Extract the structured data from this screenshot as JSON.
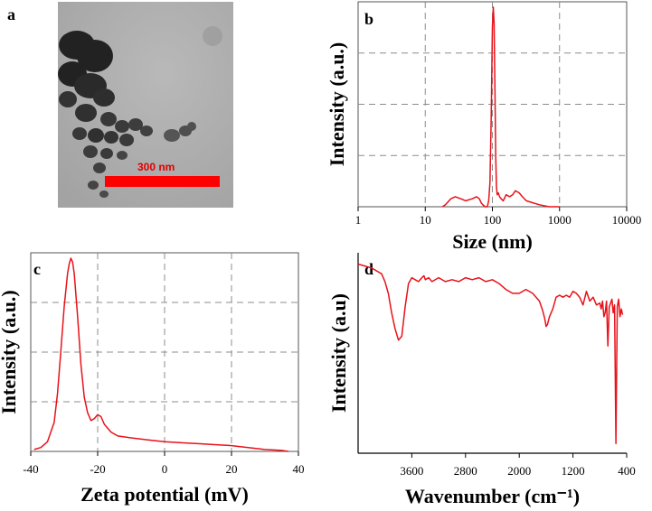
{
  "panels": {
    "a": {
      "letter": "a",
      "scale_bar_label": "300 nm",
      "scale_bar_color": "#ff0000"
    },
    "b": {
      "letter": "b"
    },
    "c": {
      "letter": "c"
    },
    "d": {
      "letter": "d"
    }
  },
  "chart_data": [
    {
      "panel": "b",
      "type": "line",
      "xlabel": "Size (nm)",
      "ylabel": "Intensity (a.u.)",
      "xscale": "log",
      "xlim": [
        1,
        10000
      ],
      "xticks": [
        1,
        10,
        100,
        1000,
        10000
      ],
      "xtick_labels": [
        "1",
        "10",
        "100",
        "1000",
        "10000"
      ],
      "ylim": [
        0,
        1
      ],
      "grid": true,
      "color": "#e8121a",
      "x": [
        18,
        20,
        24,
        28,
        34,
        40,
        50,
        58,
        64,
        68,
        72,
        78,
        84,
        88,
        92,
        96,
        100,
        103,
        106,
        109,
        112,
        115,
        118,
        122,
        128,
        135,
        145,
        160,
        180,
        200,
        220,
        250,
        280,
        320,
        400,
        500,
        700,
        1000
      ],
      "y": [
        0.0,
        0.01,
        0.04,
        0.05,
        0.04,
        0.03,
        0.04,
        0.05,
        0.04,
        0.02,
        0.01,
        0.0,
        0.0,
        0.03,
        0.12,
        0.45,
        0.9,
        1.0,
        0.92,
        0.6,
        0.25,
        0.1,
        0.06,
        0.07,
        0.05,
        0.04,
        0.03,
        0.06,
        0.05,
        0.06,
        0.08,
        0.07,
        0.05,
        0.03,
        0.02,
        0.01,
        0.0,
        0.0
      ]
    },
    {
      "panel": "c",
      "type": "line",
      "xlabel": "Zeta potential (mV)",
      "ylabel": "Intensity (a.u.)",
      "xlim": [
        -40,
        40
      ],
      "xticks": [
        -40,
        -20,
        0,
        20,
        40
      ],
      "xtick_labels": [
        "-40",
        "-20",
        "0",
        "20",
        "40"
      ],
      "ylim": [
        0,
        1
      ],
      "grid": true,
      "color": "#e8121a",
      "x": [
        -39,
        -37,
        -35,
        -33,
        -32,
        -31,
        -30,
        -29,
        -28.5,
        -28,
        -27.5,
        -27,
        -26,
        -25,
        -24,
        -23,
        -22,
        -21,
        -20,
        -19,
        -18,
        -16,
        -14,
        -10,
        -5,
        0,
        5,
        10,
        15,
        20,
        25,
        30,
        35,
        37
      ],
      "y": [
        0.01,
        0.02,
        0.05,
        0.15,
        0.3,
        0.52,
        0.75,
        0.92,
        0.97,
        1.0,
        0.98,
        0.92,
        0.7,
        0.45,
        0.28,
        0.2,
        0.16,
        0.17,
        0.19,
        0.18,
        0.14,
        0.1,
        0.08,
        0.07,
        0.06,
        0.05,
        0.045,
        0.04,
        0.035,
        0.03,
        0.02,
        0.01,
        0.005,
        0.0
      ]
    },
    {
      "panel": "d",
      "type": "line",
      "xlabel": "Wavenumber (cm⁻¹)",
      "ylabel": "Intensity (a.u)",
      "xlim": [
        4400,
        400
      ],
      "xticks": [
        3600,
        2800,
        2000,
        1200,
        400
      ],
      "xtick_labels": [
        "3600",
        "2800",
        "2000",
        "1200",
        "400"
      ],
      "ylim": [
        0,
        1
      ],
      "grid": false,
      "color": "#e8121a",
      "x": [
        4400,
        4300,
        4200,
        4100,
        4050,
        4000,
        3950,
        3900,
        3850,
        3800,
        3750,
        3700,
        3650,
        3600,
        3550,
        3500,
        3450,
        3420,
        3400,
        3350,
        3300,
        3200,
        3100,
        3000,
        2900,
        2800,
        2700,
        2600,
        2500,
        2400,
        2300,
        2200,
        2100,
        2000,
        1900,
        1800,
        1700,
        1650,
        1620,
        1600,
        1580,
        1550,
        1500,
        1450,
        1400,
        1350,
        1300,
        1250,
        1200,
        1150,
        1100,
        1050,
        1000,
        950,
        900,
        850,
        800,
        780,
        760,
        740,
        720,
        700,
        680,
        660,
        640,
        620,
        600,
        580,
        560,
        540,
        520,
        500,
        480,
        460
      ],
      "y": [
        0.97,
        0.96,
        0.95,
        0.93,
        0.92,
        0.88,
        0.82,
        0.72,
        0.64,
        0.58,
        0.6,
        0.75,
        0.87,
        0.9,
        0.89,
        0.88,
        0.9,
        0.91,
        0.89,
        0.9,
        0.88,
        0.9,
        0.88,
        0.89,
        0.88,
        0.9,
        0.89,
        0.9,
        0.88,
        0.89,
        0.87,
        0.84,
        0.82,
        0.82,
        0.84,
        0.82,
        0.78,
        0.73,
        0.69,
        0.65,
        0.66,
        0.7,
        0.74,
        0.8,
        0.81,
        0.8,
        0.81,
        0.8,
        0.83,
        0.82,
        0.8,
        0.76,
        0.83,
        0.78,
        0.8,
        0.76,
        0.77,
        0.74,
        0.78,
        0.7,
        0.72,
        0.78,
        0.55,
        0.75,
        0.77,
        0.79,
        0.72,
        0.76,
        0.05,
        0.75,
        0.79,
        0.7,
        0.74,
        0.71
      ]
    }
  ]
}
